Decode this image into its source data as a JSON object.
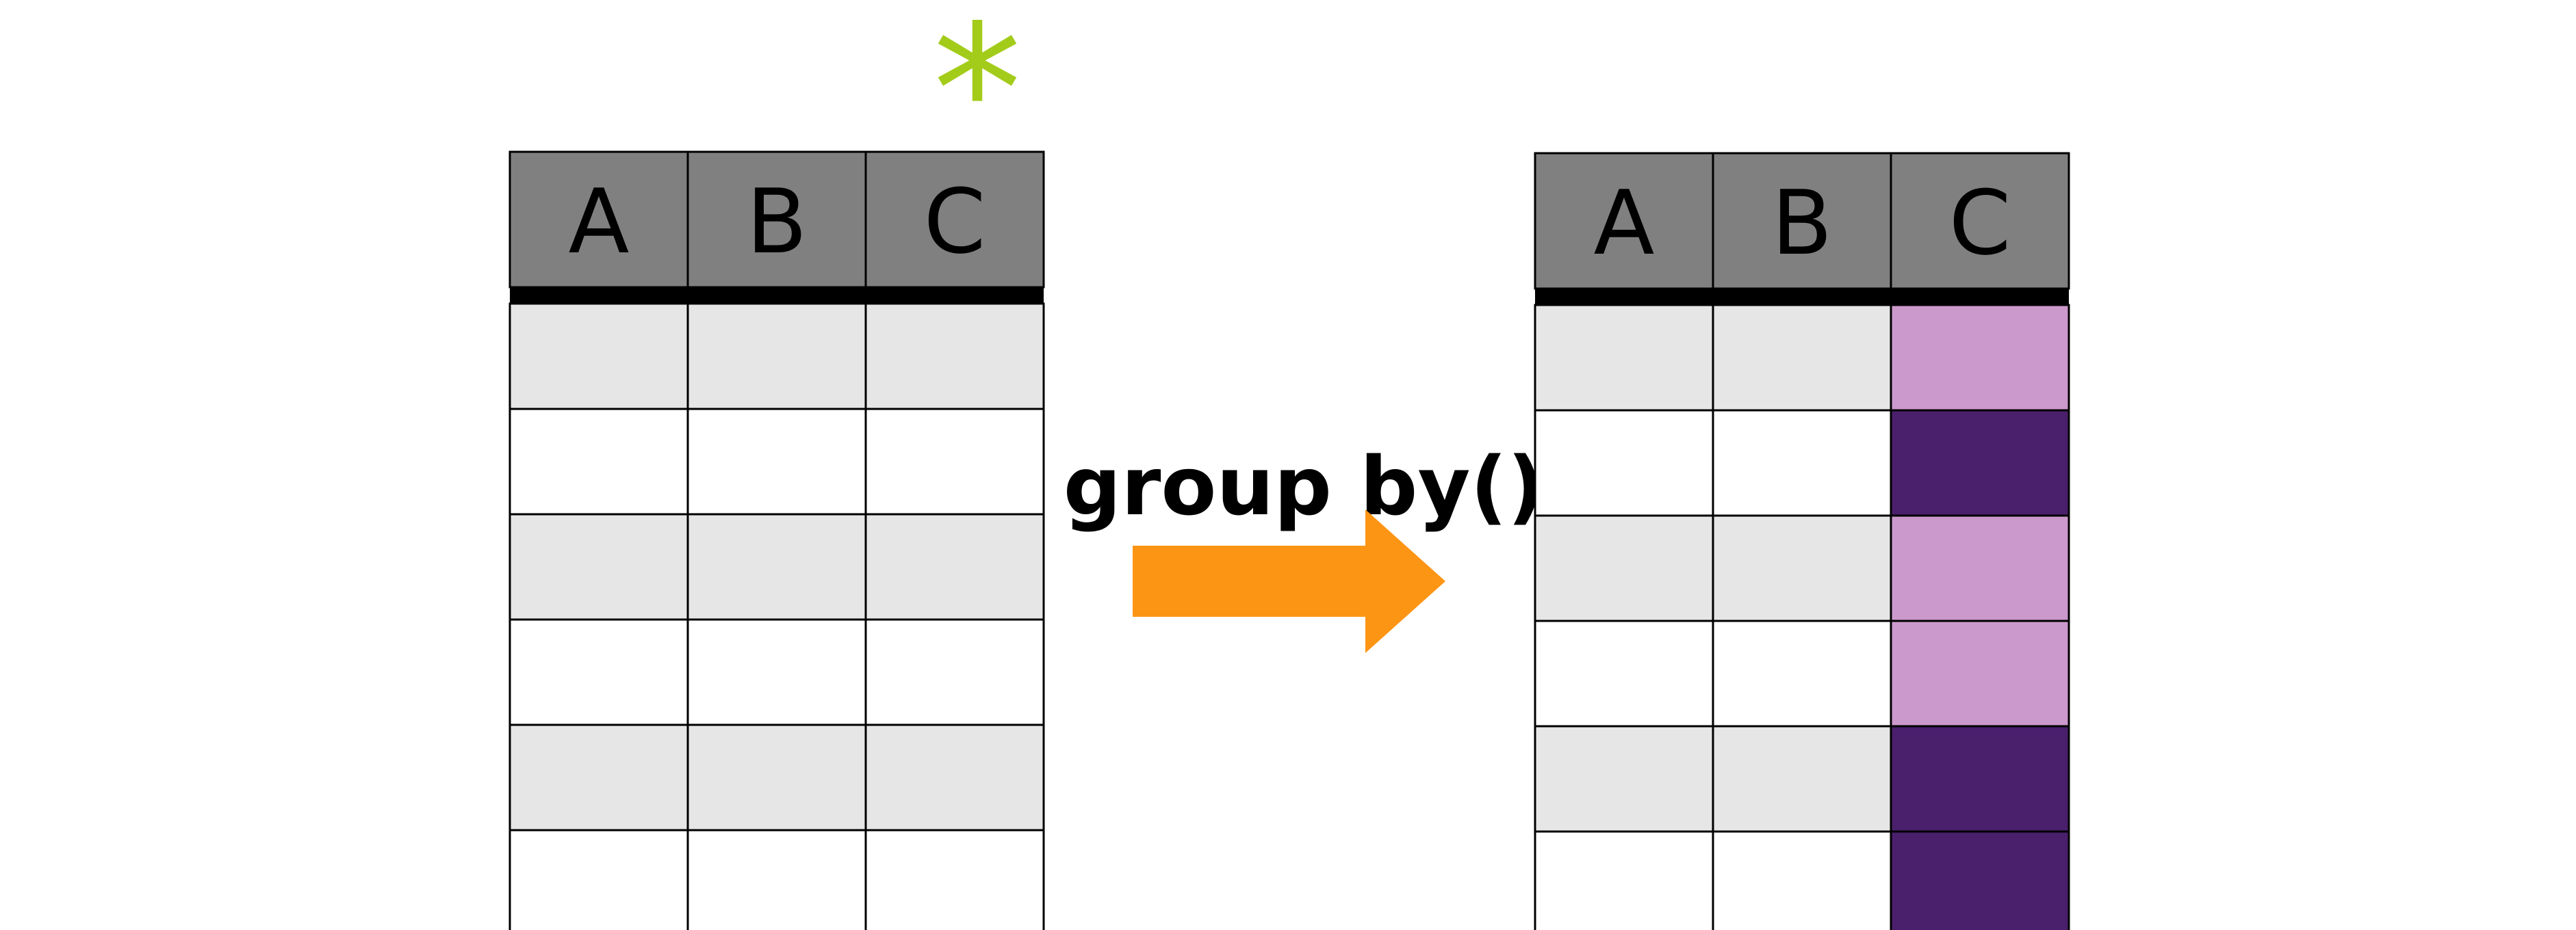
{
  "input_table": {
    "columns": [
      "A",
      "B",
      "C"
    ],
    "row_count": 6,
    "marker": "*"
  },
  "operation": {
    "label": "group by()"
  },
  "output_table": {
    "columns": [
      "A",
      "B",
      "C"
    ],
    "row_count": 6,
    "group_column_groups": [
      "light",
      "dark",
      "light",
      "light",
      "dark",
      "dark"
    ]
  },
  "colors": {
    "header": "#808080",
    "header_rule": "#000000",
    "row_shaded": "#e6e6e6",
    "row_plain": "#ffffff",
    "cell_border": "#000000",
    "arrow": "#fd9514",
    "marker": "#a3cc1a",
    "group_light": "#cc99cc",
    "group_dark": "#4a1f6b"
  }
}
